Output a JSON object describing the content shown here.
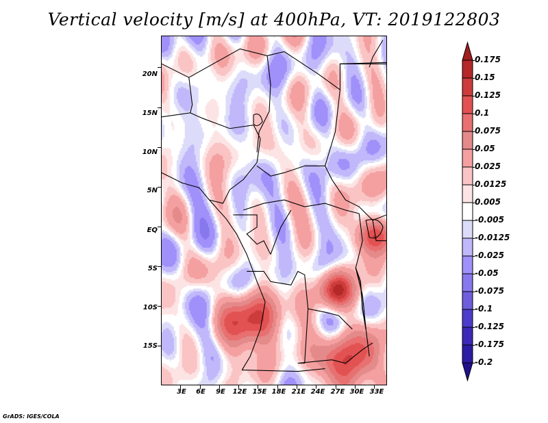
{
  "chart_data": {
    "type": "heatmap",
    "title": "Vertical velocity [m/s] at 400hPa, VT: 2019122803",
    "variable": "Vertical velocity",
    "units": "m/s",
    "level": "400hPa",
    "valid_time": "2019122803",
    "xlabel": "",
    "ylabel": "",
    "x_range_deg": [
      0,
      35
    ],
    "y_range_deg": [
      -20,
      24
    ],
    "x_ticks": [
      "3E",
      "6E",
      "9E",
      "12E",
      "15E",
      "18E",
      "21E",
      "24E",
      "27E",
      "30E",
      "33E"
    ],
    "x_tick_values": [
      3,
      6,
      9,
      12,
      15,
      18,
      21,
      24,
      27,
      30,
      33
    ],
    "y_ticks": [
      "20N",
      "15N",
      "10N",
      "5N",
      "EQ",
      "5S",
      "10S",
      "15S"
    ],
    "y_tick_values": [
      20,
      15,
      10,
      5,
      0,
      -5,
      -10,
      -15
    ],
    "colorbar": {
      "orientation": "vertical",
      "position": "right",
      "extend": "both",
      "labels": [
        "0.175",
        "0.15",
        "0.125",
        "0.1",
        "0.075",
        "0.05",
        "0.025",
        "0.0125",
        "0.005",
        "-0.005",
        "-0.0125",
        "-0.025",
        "-0.05",
        "-0.075",
        "-0.1",
        "-0.125",
        "-0.175",
        "-0.2"
      ],
      "colors": [
        "#a01e1e",
        "#b52828",
        "#cc3c3c",
        "#e25252",
        "#e87070",
        "#e48a8a",
        "#f4a0a0",
        "#fac4c4",
        "#fde4e4",
        "#ffffff",
        "#dcdcfa",
        "#c0b8fa",
        "#a090fa",
        "#8878ee",
        "#6e5edc",
        "#4c3ccc",
        "#3c28b8",
        "#2c1ca4",
        "#20108c"
      ]
    },
    "regions_of_note": [
      {
        "description": "strong ascent (red) over western Angola highlands",
        "approx_lon": 14,
        "approx_lat": -12,
        "value_max": 0.175
      },
      {
        "description": "ascent over Lake Tanganyika / eastern DRC",
        "approx_lon": 27,
        "approx_lat": -8,
        "value_max": 0.15
      },
      {
        "description": "ascent near Lake Victoria",
        "approx_lon": 33,
        "approx_lat": -1,
        "value_max": 0.15
      },
      {
        "description": "ascent over Zambia / Malawi",
        "approx_lon": 29,
        "approx_lat": -17,
        "value_max": 0.175
      }
    ],
    "grid": false
  },
  "footer": {
    "credit": "GrADS: IGES/COLA"
  }
}
